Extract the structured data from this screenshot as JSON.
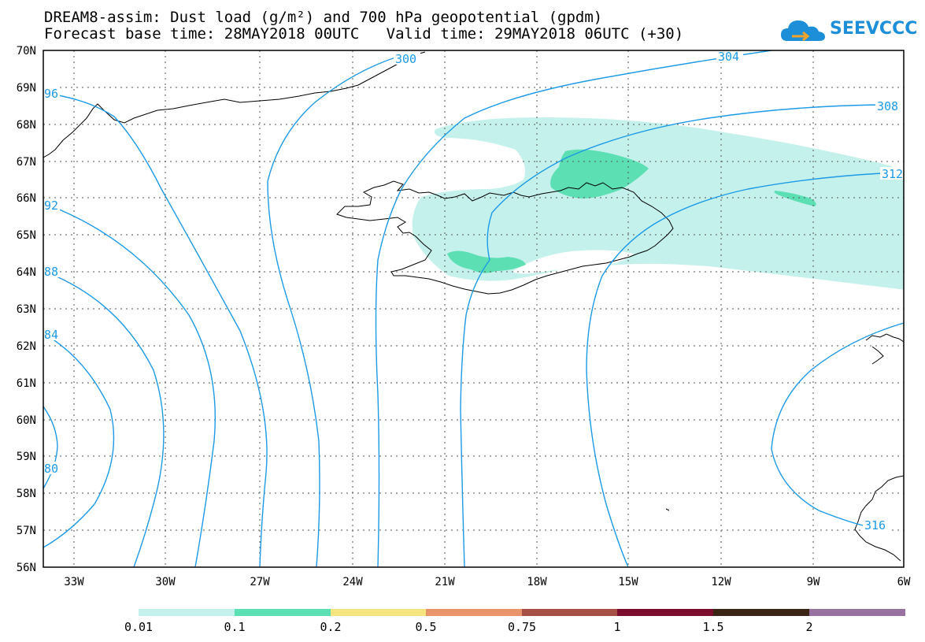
{
  "title": {
    "line1": "DREAM8-assim: Dust load (g/m²) and 700 hPa geopotential (gpdm)",
    "line2": "Forecast base time: 28MAY2018 00UTC   Valid time: 29MAY2018 06UTC (+30)"
  },
  "logo": {
    "text": "SEEVCCC",
    "icon": "cloud-logo-icon"
  },
  "map": {
    "lat_labels": [
      "70N",
      "69N",
      "68N",
      "67N",
      "66N",
      "65N",
      "64N",
      "63N",
      "62N",
      "61N",
      "60N",
      "59N",
      "58N",
      "57N",
      "56N"
    ],
    "lon_labels": [
      "33W",
      "30W",
      "27W",
      "24W",
      "21W",
      "18W",
      "15W",
      "12W",
      "9W",
      "6W"
    ],
    "contour_labels": [
      "96",
      "92",
      "88",
      "84",
      "80",
      "300",
      "304",
      "308",
      "312",
      "316"
    ],
    "contour_color": "#1c9ae6",
    "dust_color_light": "#c5f1ec",
    "dust_color_medium": "#5ddfb4"
  },
  "colorbar": {
    "labels": [
      "0.01",
      "0.1",
      "0.2",
      "0.5",
      "0.75",
      "1",
      "1.5",
      "2"
    ],
    "colors": [
      "#c5f1ec",
      "#5ddfb4",
      "#f5e57e",
      "#e8956c",
      "#a54f45",
      "#7a0c2e",
      "#3a2416",
      "#97719f"
    ]
  }
}
